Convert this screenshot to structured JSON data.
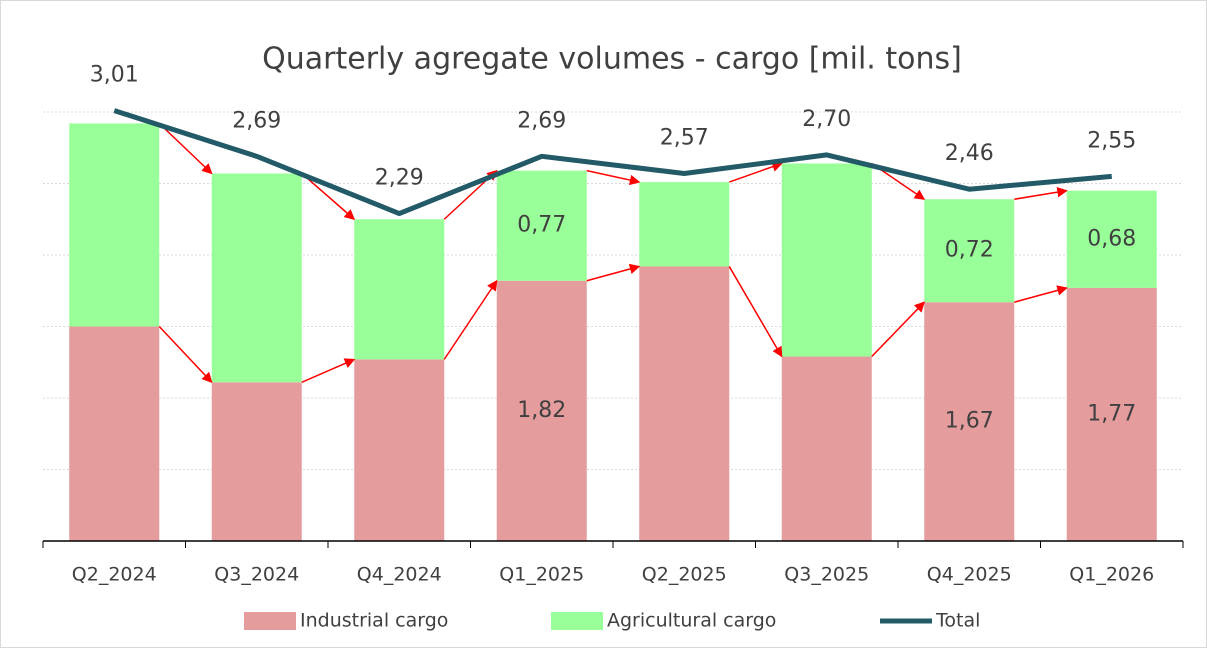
{
  "chart_data": {
    "type": "bar",
    "stacked": true,
    "title": "Quarterly agregate volumes - cargo [mil. tons]",
    "categories": [
      "Q2_2024",
      "Q3_2024",
      "Q4_2024",
      "Q1_2025",
      "Q2_2025",
      "Q3_2025",
      "Q4_2025",
      "Q1_2026"
    ],
    "series": [
      {
        "name": "Industrial cargo",
        "color": "#e59c9c",
        "values": [
          1.5,
          1.11,
          1.27,
          1.82,
          1.92,
          1.29,
          1.67,
          1.77
        ],
        "value_labels": [
          null,
          null,
          null,
          "1,82",
          null,
          null,
          "1,67",
          "1,77"
        ]
      },
      {
        "name": "Agricultural cargo",
        "color": "#99ff99",
        "values": [
          1.42,
          1.46,
          0.98,
          0.77,
          0.59,
          1.35,
          0.72,
          0.68
        ],
        "value_labels": [
          null,
          null,
          null,
          "0,77",
          null,
          null,
          "0,72",
          "0,68"
        ]
      },
      {
        "name": "Total",
        "type": "line",
        "color": "#225a68",
        "values": [
          3.01,
          2.69,
          2.29,
          2.69,
          2.57,
          2.7,
          2.46,
          2.55
        ],
        "value_labels": [
          "3,01",
          "2,69",
          "2,29",
          "2,69",
          "2,57",
          "2,70",
          "2,46",
          "2,55"
        ]
      }
    ],
    "ylim": [
      0,
      3.0
    ],
    "yticks": [
      0,
      0.5,
      1.0,
      1.5,
      2.0,
      2.5,
      3.0
    ],
    "grid": true,
    "arrow_color": "#ff0000",
    "legend": "bottom"
  }
}
